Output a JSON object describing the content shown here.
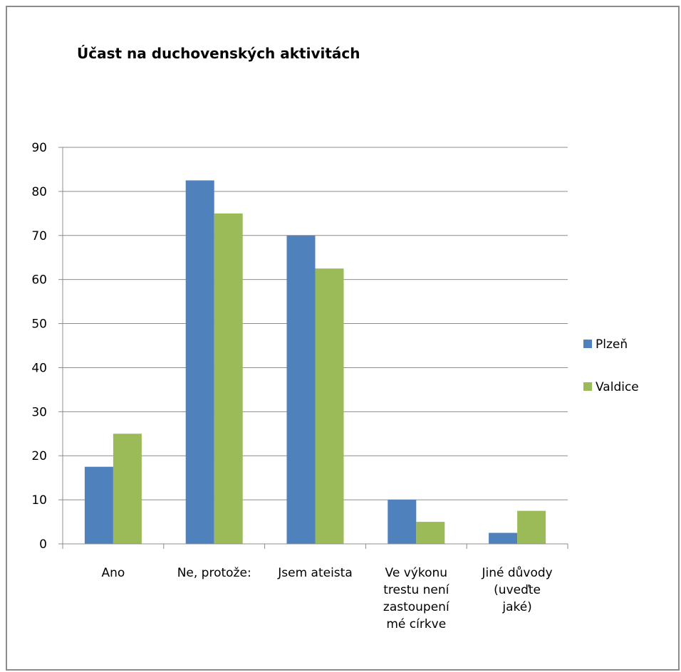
{
  "chart_data": {
    "type": "bar",
    "title": "Účast na duchovenských aktivitách",
    "xlabel": "",
    "ylabel": "",
    "ylim": [
      0,
      90
    ],
    "yticks": [
      0,
      10,
      20,
      30,
      40,
      50,
      60,
      70,
      80,
      90
    ],
    "grid": true,
    "legend_position": "right",
    "categories": [
      [
        "Ano"
      ],
      [
        "Ne, protože:"
      ],
      [
        "Jsem ateista"
      ],
      [
        "Ve výkonu",
        "trestu není",
        "zastoupení",
        "mé církve"
      ],
      [
        "Jiné důvody",
        "(uveďte",
        "jaké)"
      ]
    ],
    "series": [
      {
        "name": "Plzeň",
        "color": "#4f81bd",
        "values": [
          17.5,
          82.5,
          70,
          10,
          2.5
        ]
      },
      {
        "name": "Valdice",
        "color": "#9bbb59",
        "values": [
          25,
          75,
          62.5,
          5,
          7.5
        ]
      }
    ]
  }
}
